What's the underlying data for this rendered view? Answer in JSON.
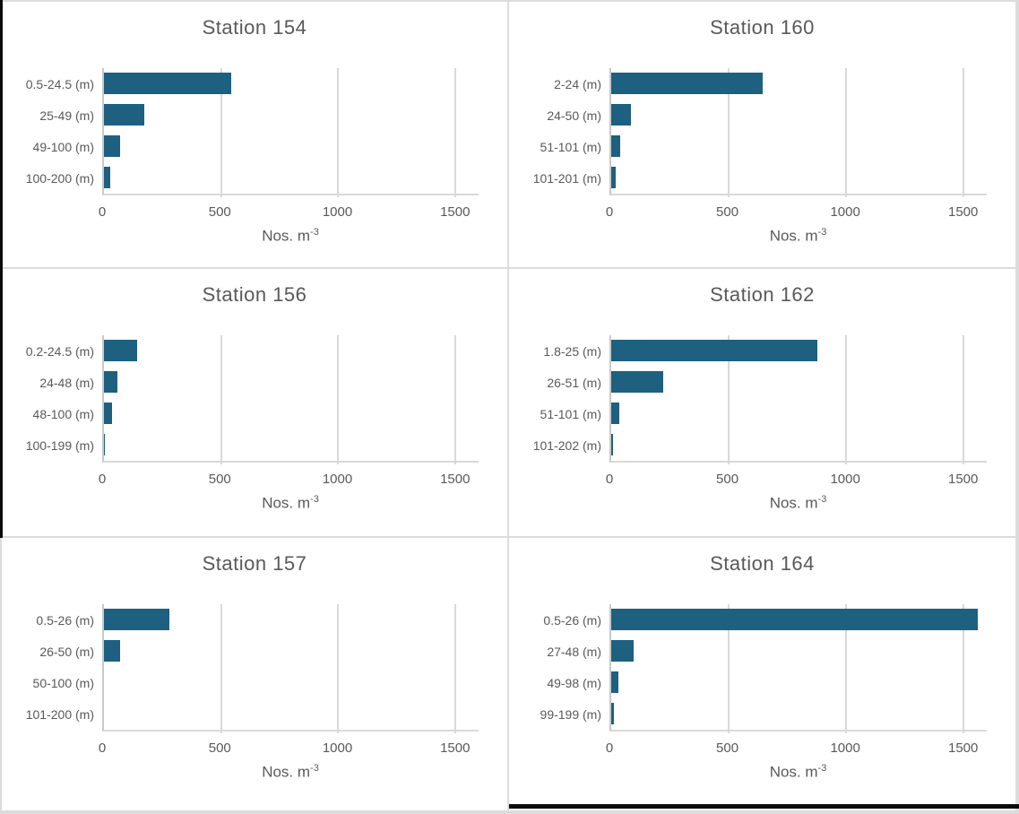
{
  "colors": {
    "bar": "#1d6080",
    "gridline": "#d9d9d9",
    "axis_line": "#c9c9c9",
    "text": "#595959",
    "panel_border": "#dcdcdc",
    "edge_strip": "#0a0a0a"
  },
  "x_axis": {
    "label_main": "Nos. m",
    "label_sup": "-3",
    "ticks": [
      "0",
      "500",
      "1000",
      "1500"
    ],
    "tick_values": [
      0,
      500,
      1000,
      1500
    ],
    "display_max": 1600
  },
  "chart_data": [
    {
      "type": "bar",
      "title": "Station 154",
      "categories": [
        "0.5-24.5 (m)",
        "25-49 (m)",
        "49-100 (m)",
        "100-200 (m)"
      ],
      "values": [
        545,
        173,
        70,
        25
      ],
      "xlabel": "Nos. m^-3",
      "xlim": [
        0,
        1600
      ],
      "xticks": [
        0,
        500,
        1000,
        1500
      ],
      "grid": true,
      "legend": false
    },
    {
      "type": "bar",
      "title": "Station 160",
      "categories": [
        "2-24 (m)",
        "24-50 (m)",
        "51-101 (m)",
        "101-201 (m)"
      ],
      "values": [
        645,
        85,
        38,
        20
      ],
      "xlabel": "Nos. m^-3",
      "xlim": [
        0,
        1600
      ],
      "xticks": [
        0,
        500,
        1000,
        1500
      ],
      "grid": true,
      "legend": false
    },
    {
      "type": "bar",
      "title": "Station 156",
      "categories": [
        "0.2-24.5 (m)",
        "24-48 (m)",
        "48-100 (m)",
        "100-199 (m)"
      ],
      "values": [
        142,
        58,
        33,
        5
      ],
      "xlabel": "Nos. m^-3",
      "xlim": [
        0,
        1600
      ],
      "xticks": [
        0,
        500,
        1000,
        1500
      ],
      "grid": true,
      "legend": false
    },
    {
      "type": "bar",
      "title": "Station 162",
      "categories": [
        "1.8-25 (m)",
        "26-51 (m)",
        "51-101 (m)",
        "101-202 (m)"
      ],
      "values": [
        877,
        222,
        35,
        8
      ],
      "xlabel": "Nos. m^-3",
      "xlim": [
        0,
        1600
      ],
      "xticks": [
        0,
        500,
        1000,
        1500
      ],
      "grid": true,
      "legend": false
    },
    {
      "type": "bar",
      "title": "Station 157",
      "categories": [
        "0.5-26 (m)",
        "26-50 (m)",
        "50-100 (m)",
        "101-200 (m)"
      ],
      "values": [
        278,
        68,
        0,
        0
      ],
      "xlabel": "Nos. m^-3",
      "xlim": [
        0,
        1600
      ],
      "xticks": [
        0,
        500,
        1000,
        1500
      ],
      "grid": true,
      "legend": false
    },
    {
      "type": "bar",
      "title": "Station 164",
      "categories": [
        "0.5-26 (m)",
        "27-48 (m)",
        "49-98 (m)",
        "99-199 (m)"
      ],
      "values": [
        1560,
        97,
        30,
        10
      ],
      "xlabel": "Nos. m^-3",
      "xlim": [
        0,
        1600
      ],
      "xticks": [
        0,
        500,
        1000,
        1500
      ],
      "grid": true,
      "legend": false
    }
  ]
}
